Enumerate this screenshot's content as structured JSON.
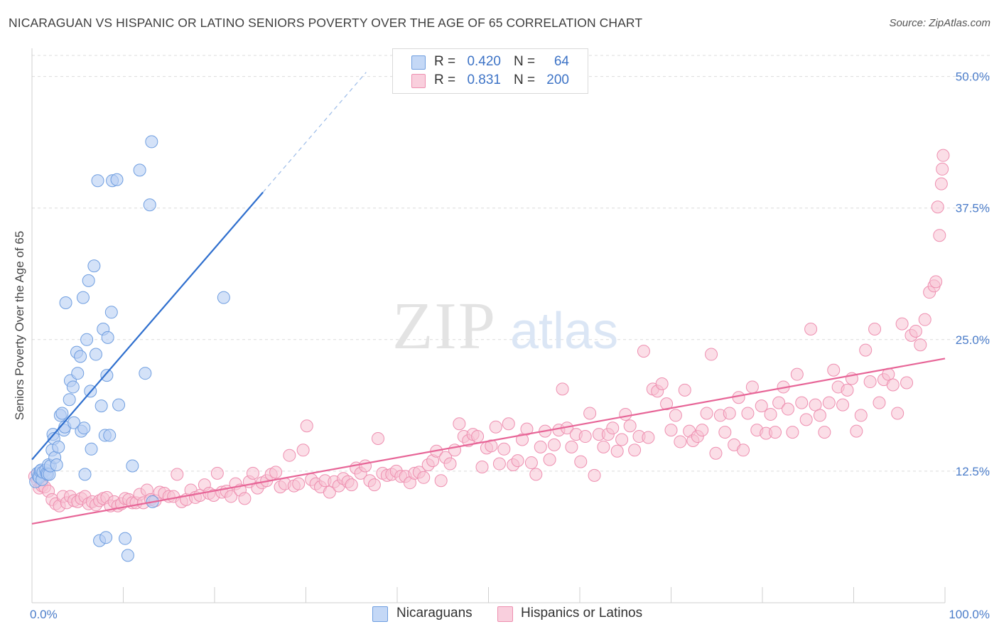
{
  "header": {
    "title": "NICARAGUAN VS HISPANIC OR LATINO SENIORS POVERTY OVER THE AGE OF 65 CORRELATION CHART",
    "source": "Source: ZipAtlas.com"
  },
  "watermark": {
    "zip": "ZIP",
    "atlas": "atlas"
  },
  "legend": {
    "rows": [
      {
        "r_label": "R =",
        "r_value": "0.420",
        "n_label": "N =",
        "n_value": "64",
        "color": "#8fb6ee"
      },
      {
        "r_label": "R =",
        "r_value": "0.831",
        "n_label": "N =",
        "n_value": "200",
        "color": "#f3a9c4"
      }
    ]
  },
  "bottom_legend": {
    "items": [
      {
        "label": "Nicaraguans",
        "color": "#8fb6ee"
      },
      {
        "label": "Hispanics or Latinos",
        "color": "#f3a9c4"
      }
    ]
  },
  "colors": {
    "blue_fill": "#b7cff3",
    "blue_stroke": "#6f9ee0",
    "blue_line": "#2f6fce",
    "pink_fill": "#f7c3d4",
    "pink_stroke": "#ee8fb0",
    "pink_line": "#e76597",
    "tick_text": "#4a7cc9",
    "grid": "#dcdcdc"
  },
  "chart_data": {
    "type": "scatter",
    "ylabel": "Seniors Poverty Over the Age of 65",
    "x_tick_labels": [
      "0.0%",
      "100.0%"
    ],
    "y_ticks": [
      12.5,
      25.0,
      37.5,
      50.0
    ],
    "y_tick_labels": [
      "12.5%",
      "25.0%",
      "37.5%",
      "50.0%"
    ],
    "xlim": [
      0,
      100
    ],
    "ylim": [
      0,
      50
    ],
    "grid": true,
    "legend_position": "top-center",
    "series": [
      {
        "name": "Nicaraguans",
        "R": 0.42,
        "N": 64,
        "trend": {
          "x0": 0,
          "y0": 13.6,
          "x1": 25.3,
          "y1": 39.0,
          "dashed_to_x": 36.6,
          "dashed_to_y": 50.4
        },
        "points": [
          [
            0.4,
            11.5
          ],
          [
            0.6,
            12.3
          ],
          [
            0.7,
            12.0
          ],
          [
            0.8,
            11.9
          ],
          [
            0.9,
            12.5
          ],
          [
            1.0,
            12.6
          ],
          [
            1.1,
            11.7
          ],
          [
            1.2,
            12.4
          ],
          [
            1.5,
            12.6
          ],
          [
            1.6,
            12.3
          ],
          [
            1.7,
            12.2
          ],
          [
            1.8,
            13.1
          ],
          [
            1.9,
            12.2
          ],
          [
            2.0,
            13.0
          ],
          [
            2.2,
            14.5
          ],
          [
            2.3,
            16.0
          ],
          [
            2.4,
            15.6
          ],
          [
            2.5,
            13.8
          ],
          [
            2.7,
            13.1
          ],
          [
            2.9,
            14.8
          ],
          [
            3.1,
            17.8
          ],
          [
            3.3,
            18.0
          ],
          [
            3.5,
            16.4
          ],
          [
            3.6,
            16.7
          ],
          [
            3.7,
            28.5
          ],
          [
            4.1,
            19.3
          ],
          [
            4.2,
            21.1
          ],
          [
            4.5,
            20.5
          ],
          [
            4.6,
            17.1
          ],
          [
            4.9,
            23.8
          ],
          [
            5.0,
            21.8
          ],
          [
            5.3,
            23.4
          ],
          [
            5.4,
            16.3
          ],
          [
            5.6,
            29.0
          ],
          [
            5.7,
            16.6
          ],
          [
            5.8,
            12.2
          ],
          [
            6.0,
            25.0
          ],
          [
            6.2,
            30.6
          ],
          [
            6.4,
            20.1
          ],
          [
            6.5,
            14.6
          ],
          [
            6.8,
            32.0
          ],
          [
            7.0,
            23.6
          ],
          [
            7.2,
            40.1
          ],
          [
            7.4,
            5.9
          ],
          [
            7.6,
            18.7
          ],
          [
            7.8,
            26.0
          ],
          [
            8.0,
            15.9
          ],
          [
            8.1,
            6.2
          ],
          [
            8.2,
            21.6
          ],
          [
            8.3,
            25.2
          ],
          [
            8.5,
            15.9
          ],
          [
            8.7,
            27.6
          ],
          [
            8.8,
            40.1
          ],
          [
            9.3,
            40.2
          ],
          [
            9.5,
            18.8
          ],
          [
            10.2,
            6.1
          ],
          [
            10.5,
            4.5
          ],
          [
            11.0,
            13.0
          ],
          [
            11.8,
            41.1
          ],
          [
            12.4,
            21.8
          ],
          [
            12.9,
            37.8
          ],
          [
            13.1,
            43.8
          ],
          [
            13.2,
            9.6
          ],
          [
            21.0,
            29.0
          ]
        ]
      },
      {
        "name": "Hispanics or Latinos",
        "R": 0.831,
        "N": 200,
        "trend": {
          "x0": 0,
          "y0": 7.5,
          "x1": 100,
          "y1": 23.2
        },
        "points": [
          [
            0.3,
            12.0
          ],
          [
            0.6,
            11.6
          ],
          [
            0.8,
            10.9
          ],
          [
            1.1,
            11.1
          ],
          [
            1.4,
            11.0
          ],
          [
            1.8,
            10.6
          ],
          [
            2.2,
            9.8
          ],
          [
            2.6,
            9.4
          ],
          [
            3.0,
            9.2
          ],
          [
            3.4,
            10.1
          ],
          [
            3.8,
            9.5
          ],
          [
            4.2,
            10.1
          ],
          [
            4.6,
            9.7
          ],
          [
            5.0,
            9.6
          ],
          [
            5.4,
            9.9
          ],
          [
            5.8,
            10.1
          ],
          [
            6.2,
            9.4
          ],
          [
            6.6,
            9.6
          ],
          [
            7.0,
            9.3
          ],
          [
            7.4,
            9.7
          ],
          [
            7.8,
            9.9
          ],
          [
            8.2,
            10.0
          ],
          [
            8.6,
            9.2
          ],
          [
            9.0,
            9.6
          ],
          [
            9.4,
            9.2
          ],
          [
            9.8,
            9.4
          ],
          [
            10.2,
            9.9
          ],
          [
            10.6,
            9.8
          ],
          [
            11.0,
            9.5
          ],
          [
            11.4,
            9.5
          ],
          [
            11.8,
            10.3
          ],
          [
            12.2,
            9.5
          ],
          [
            12.6,
            10.7
          ],
          [
            13.0,
            9.8
          ],
          [
            13.5,
            9.7
          ],
          [
            14.0,
            10.5
          ],
          [
            14.5,
            10.4
          ],
          [
            15.0,
            10.1
          ],
          [
            15.5,
            10.1
          ],
          [
            15.9,
            12.2
          ],
          [
            16.4,
            9.6
          ],
          [
            16.9,
            9.8
          ],
          [
            17.4,
            10.7
          ],
          [
            17.9,
            10.0
          ],
          [
            18.4,
            10.2
          ],
          [
            18.9,
            11.2
          ],
          [
            19.4,
            10.4
          ],
          [
            19.9,
            10.2
          ],
          [
            20.3,
            12.3
          ],
          [
            20.8,
            10.5
          ],
          [
            21.3,
            10.6
          ],
          [
            21.8,
            10.1
          ],
          [
            22.3,
            11.3
          ],
          [
            22.8,
            10.7
          ],
          [
            23.3,
            9.9
          ],
          [
            23.8,
            11.5
          ],
          [
            24.2,
            12.3
          ],
          [
            24.7,
            10.9
          ],
          [
            25.2,
            11.4
          ],
          [
            25.7,
            11.6
          ],
          [
            26.2,
            12.2
          ],
          [
            26.7,
            12.4
          ],
          [
            27.2,
            11.0
          ],
          [
            27.7,
            11.3
          ],
          [
            28.2,
            14.0
          ],
          [
            28.7,
            11.1
          ],
          [
            29.2,
            11.3
          ],
          [
            29.7,
            14.5
          ],
          [
            30.1,
            16.8
          ],
          [
            30.6,
            11.7
          ],
          [
            31.1,
            11.3
          ],
          [
            31.6,
            11.0
          ],
          [
            32.1,
            11.6
          ],
          [
            32.6,
            10.5
          ],
          [
            33.1,
            11.5
          ],
          [
            33.6,
            11.1
          ],
          [
            34.1,
            11.8
          ],
          [
            34.6,
            11.5
          ],
          [
            35.0,
            11.2
          ],
          [
            35.5,
            12.8
          ],
          [
            36.0,
            12.3
          ],
          [
            36.5,
            13.0
          ],
          [
            37.0,
            11.6
          ],
          [
            37.5,
            11.2
          ],
          [
            37.9,
            15.6
          ],
          [
            38.4,
            12.3
          ],
          [
            38.9,
            12.1
          ],
          [
            39.4,
            12.2
          ],
          [
            39.9,
            12.5
          ],
          [
            40.4,
            12.0
          ],
          [
            40.9,
            12.0
          ],
          [
            41.4,
            11.4
          ],
          [
            41.9,
            12.3
          ],
          [
            42.4,
            12.4
          ],
          [
            42.9,
            11.9
          ],
          [
            43.4,
            13.1
          ],
          [
            43.9,
            13.5
          ],
          [
            44.3,
            14.4
          ],
          [
            44.8,
            11.6
          ],
          [
            45.3,
            13.8
          ],
          [
            45.8,
            13.2
          ],
          [
            46.3,
            14.5
          ],
          [
            46.8,
            17.0
          ],
          [
            47.3,
            15.8
          ],
          [
            47.8,
            15.4
          ],
          [
            48.3,
            16.0
          ],
          [
            48.8,
            15.8
          ],
          [
            49.3,
            12.9
          ],
          [
            49.8,
            14.7
          ],
          [
            50.3,
            14.9
          ],
          [
            50.8,
            16.7
          ],
          [
            51.2,
            13.2
          ],
          [
            51.7,
            14.6
          ],
          [
            52.2,
            17.0
          ],
          [
            52.7,
            13.1
          ],
          [
            53.2,
            13.5
          ],
          [
            53.7,
            15.5
          ],
          [
            54.2,
            16.5
          ],
          [
            54.7,
            13.3
          ],
          [
            55.2,
            12.2
          ],
          [
            55.7,
            14.8
          ],
          [
            56.2,
            16.3
          ],
          [
            56.7,
            13.6
          ],
          [
            57.2,
            15.0
          ],
          [
            57.7,
            16.4
          ],
          [
            58.1,
            20.3
          ],
          [
            58.6,
            16.6
          ],
          [
            59.1,
            14.8
          ],
          [
            59.6,
            16.0
          ],
          [
            60.1,
            13.4
          ],
          [
            60.6,
            15.8
          ],
          [
            61.1,
            18.0
          ],
          [
            61.6,
            12.1
          ],
          [
            62.1,
            16.0
          ],
          [
            62.6,
            14.8
          ],
          [
            63.1,
            16.0
          ],
          [
            63.6,
            16.6
          ],
          [
            64.1,
            14.4
          ],
          [
            64.6,
            15.5
          ],
          [
            65.0,
            17.9
          ],
          [
            65.5,
            16.8
          ],
          [
            66.0,
            14.5
          ],
          [
            66.5,
            15.8
          ],
          [
            67.0,
            23.9
          ],
          [
            67.5,
            15.7
          ],
          [
            68.0,
            20.3
          ],
          [
            68.5,
            20.1
          ],
          [
            69.0,
            20.8
          ],
          [
            69.5,
            18.9
          ],
          [
            70.0,
            16.4
          ],
          [
            70.5,
            17.8
          ],
          [
            71.0,
            15.3
          ],
          [
            71.5,
            20.2
          ],
          [
            72.0,
            16.3
          ],
          [
            72.4,
            15.4
          ],
          [
            72.9,
            15.8
          ],
          [
            73.4,
            16.4
          ],
          [
            73.9,
            18.0
          ],
          [
            74.4,
            23.6
          ],
          [
            74.9,
            14.2
          ],
          [
            75.4,
            17.8
          ],
          [
            75.9,
            16.2
          ],
          [
            76.4,
            18.0
          ],
          [
            76.9,
            15.0
          ],
          [
            77.4,
            19.5
          ],
          [
            77.9,
            14.5
          ],
          [
            78.4,
            18.0
          ],
          [
            78.9,
            20.5
          ],
          [
            79.4,
            16.4
          ],
          [
            79.9,
            18.7
          ],
          [
            80.4,
            16.1
          ],
          [
            80.9,
            17.9
          ],
          [
            81.4,
            16.2
          ],
          [
            81.8,
            19.0
          ],
          [
            82.3,
            20.5
          ],
          [
            82.8,
            18.4
          ],
          [
            83.3,
            16.2
          ],
          [
            83.8,
            21.7
          ],
          [
            84.3,
            19.0
          ],
          [
            84.8,
            17.4
          ],
          [
            85.3,
            26.0
          ],
          [
            85.8,
            18.8
          ],
          [
            86.3,
            17.8
          ],
          [
            86.8,
            16.2
          ],
          [
            87.3,
            19.0
          ],
          [
            87.8,
            22.1
          ],
          [
            88.3,
            20.5
          ],
          [
            88.8,
            18.8
          ],
          [
            89.3,
            20.2
          ],
          [
            89.8,
            21.3
          ],
          [
            90.3,
            16.3
          ],
          [
            90.8,
            17.8
          ],
          [
            91.3,
            24.0
          ],
          [
            91.8,
            21.0
          ],
          [
            92.3,
            26.0
          ],
          [
            92.8,
            19.0
          ],
          [
            93.3,
            21.2
          ],
          [
            93.8,
            21.7
          ],
          [
            94.3,
            20.7
          ],
          [
            94.8,
            18.0
          ],
          [
            95.3,
            26.5
          ],
          [
            95.8,
            20.9
          ],
          [
            96.3,
            25.4
          ],
          [
            96.8,
            25.8
          ],
          [
            97.3,
            24.5
          ],
          [
            97.8,
            26.9
          ],
          [
            98.3,
            29.5
          ],
          [
            98.8,
            30.1
          ],
          [
            99.0,
            30.5
          ],
          [
            99.2,
            37.6
          ],
          [
            99.4,
            34.9
          ],
          [
            99.6,
            39.8
          ],
          [
            99.7,
            41.2
          ],
          [
            99.8,
            42.5
          ]
        ]
      }
    ]
  }
}
